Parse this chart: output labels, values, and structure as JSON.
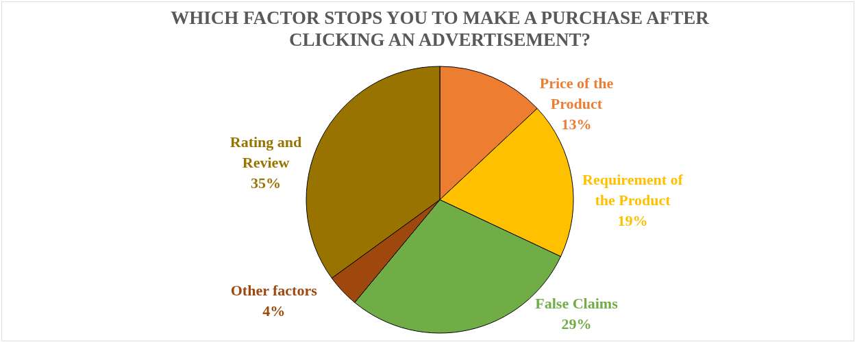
{
  "chart_data": {
    "type": "pie",
    "title": "WHICH FACTOR STOPS YOU TO MAKE A PURCHASE AFTER CLICKING AN ADVERTISEMENT?",
    "categories": [
      "Price of the Product",
      "Requirement of the Product",
      "False Claims",
      "Other factors",
      "Rating and Review"
    ],
    "values": [
      13,
      19,
      29,
      4,
      35
    ],
    "colors": [
      "#ed7d31",
      "#ffc000",
      "#70ad47",
      "#9e480e",
      "#997300"
    ],
    "value_labels": [
      "13%",
      "19%",
      "29%",
      "4%",
      "35%"
    ]
  }
}
